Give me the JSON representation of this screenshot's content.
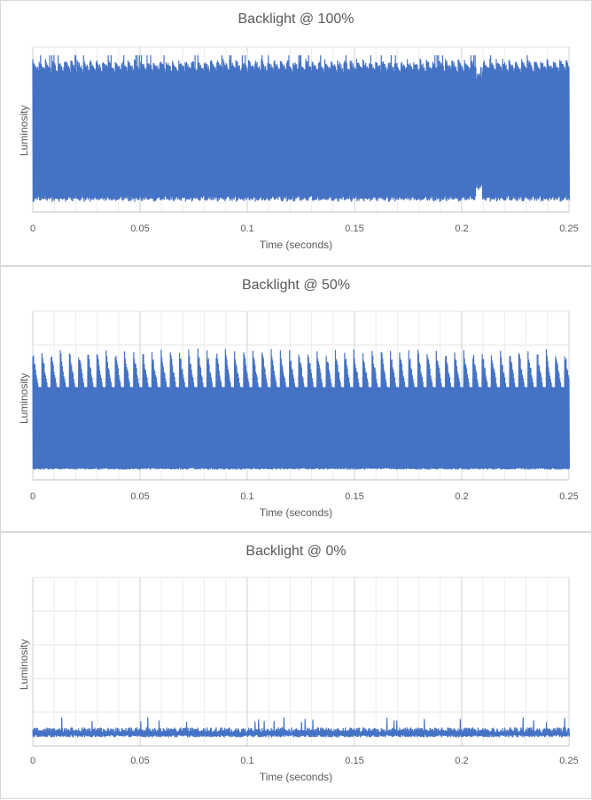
{
  "chart_data": [
    {
      "type": "line",
      "title": "Backlight @ 100%",
      "xlabel": "Time (seconds)",
      "ylabel": "Luminosity",
      "xlim": [
        0,
        0.25
      ],
      "ylim": [
        0,
        1
      ],
      "x_ticks": [
        "0",
        "0.05",
        "0.1",
        "0.15",
        "0.2",
        "0.25"
      ],
      "grid": true,
      "series": [
        {
          "color": "#4472c4",
          "description": "dense flicker signal, oscillating between low and high luminosity",
          "low": 0.06,
          "high": 0.9,
          "spike_high": 0.95,
          "dip_at_x": 0.208
        }
      ]
    },
    {
      "type": "line",
      "title": "Backlight @ 50%",
      "xlabel": "Time (seconds)",
      "ylabel": "Luminosity",
      "xlim": [
        0,
        0.25
      ],
      "ylim": [
        0,
        1
      ],
      "x_ticks": [
        "0",
        "0.05",
        "0.1",
        "0.15",
        "0.2",
        "0.25"
      ],
      "grid": true,
      "series": [
        {
          "color": "#4472c4",
          "description": "dense flicker signal with periodic decaying spikes",
          "low": 0.06,
          "high": 0.55,
          "spike_high": 0.78
        }
      ]
    },
    {
      "type": "line",
      "title": "Backlight @ 0%",
      "xlabel": "Time (seconds)",
      "ylabel": "Luminosity",
      "xlim": [
        0,
        0.25
      ],
      "ylim": [
        0,
        1
      ],
      "x_ticks": [
        "0",
        "0.05",
        "0.1",
        "0.15",
        "0.2",
        "0.25"
      ],
      "grid": true,
      "series": [
        {
          "color": "#4472c4",
          "description": "low-level flicker signal near the bottom of the range",
          "low": 0.05,
          "high": 0.11,
          "spike_high": 0.17
        }
      ]
    }
  ]
}
